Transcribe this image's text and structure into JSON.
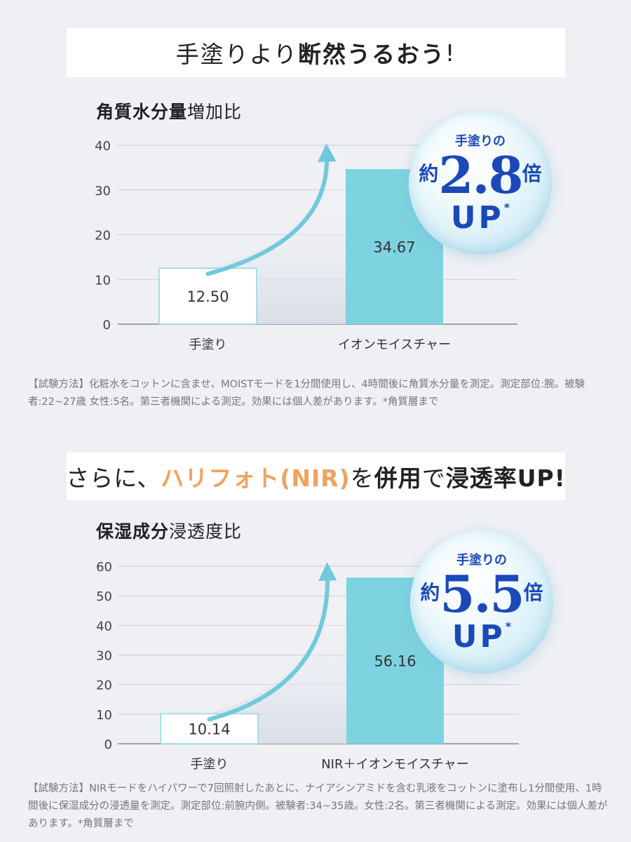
{
  "banner1": {
    "part1": "手塗りより",
    "part2": "断然うるおう",
    "part3": "!"
  },
  "banner2": {
    "part1": "さらに、",
    "part2": "ハリフォト(NIR)",
    "part3": "を",
    "part4": "併用",
    "part5": "で",
    "part6": "浸透率UP!"
  },
  "chart1_title": {
    "bold": "角質水分量",
    "normal": "増加比"
  },
  "chart2_title": {
    "bold": "保湿成分",
    "normal": "浸透度比"
  },
  "badge1": {
    "top": "手塗りの",
    "yaku": "約",
    "num": "2.8",
    "bai": "倍",
    "up": "UP",
    "mark": "*"
  },
  "badge2": {
    "top": "手塗りの",
    "yaku": "約",
    "num": "5.5",
    "bai": "倍",
    "up": "UP",
    "mark": "*"
  },
  "note1": "【試験方法】化粧水をコットンに含ませ、MOISTモードを1分間使用し、4時間後に角質水分量を測定。測定部位:腕。被験者:22~27歳 女性:5名。第三者機関による測定。効果には個人差があります。*角質層まで",
  "note2": "【試験方法】NIRモードをハイパワーで7回照射したあとに、ナイアシンアミドを含む乳液をコットンに塗布し1分間使用、1時間後に保湿成分の浸透量を測定。測定部位:前腕内側。被験者:34~35歳。女性:2名。第三者機関による測定。効果には個人差があります。*角質層まで",
  "colors": {
    "bar_main": "#7dd3e0",
    "bar_base_border": "#8fd5e3",
    "arrow": "#72c9db",
    "badge_text": "#1b49b9",
    "accent_orange": "#f0a35f"
  },
  "chart_data": [
    {
      "type": "bar",
      "title": "角質水分量増加比",
      "categories": [
        "手塗り",
        "イオンモイスチャー"
      ],
      "values": [
        12.5,
        34.67
      ],
      "value_labels": [
        "12.50",
        "34.67"
      ],
      "ylim": [
        0,
        40
      ],
      "yticks": [
        0,
        10,
        20,
        30,
        40
      ],
      "grid": true
    },
    {
      "type": "bar",
      "title": "保湿成分浸透度比",
      "categories": [
        "手塗り",
        "NIR＋イオンモイスチャー"
      ],
      "values": [
        10.14,
        56.16
      ],
      "value_labels": [
        "10.14",
        "56.16"
      ],
      "ylim": [
        0,
        60
      ],
      "yticks": [
        0,
        10,
        20,
        30,
        40,
        50,
        60
      ],
      "grid": true
    }
  ]
}
